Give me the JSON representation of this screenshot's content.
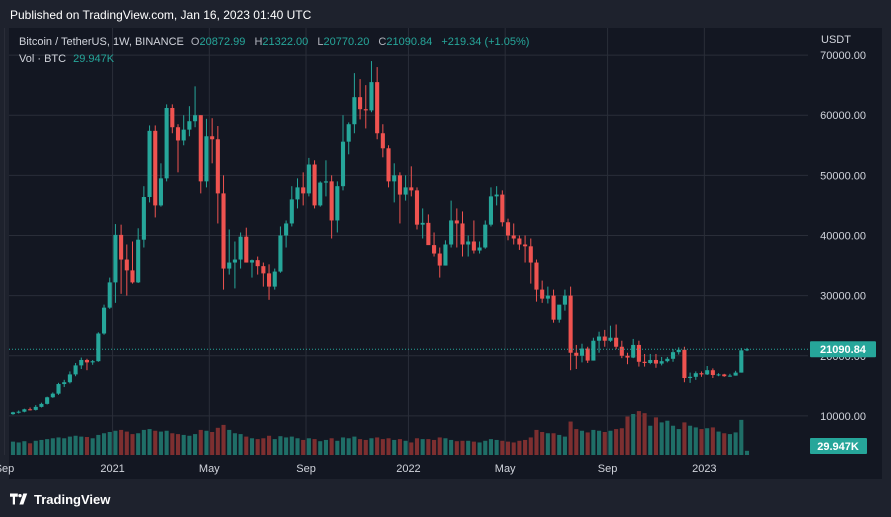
{
  "header": {
    "published": "Published on TradingView.com, Jan 16, 2023 01:40 UTC"
  },
  "legend": {
    "symbol": "Bitcoin / TetherUS, 1W, BINANCE",
    "open_label": "O",
    "open": "20872.99",
    "high_label": "H",
    "high": "21322.00",
    "low_label": "L",
    "low": "20770.20",
    "close_label": "C",
    "close": "21090.84",
    "change": "+219.34 (+1.05%)",
    "vol_label": "Vol · BTC",
    "vol_value": "29.947K"
  },
  "currency": "USDT",
  "footer": {
    "brand": "TradingView"
  },
  "colors": {
    "up": "#26a69a",
    "down": "#ef5350",
    "up_volume": "#1f6e67",
    "down_volume": "#7d2f30",
    "grid": "#2a2e39",
    "background": "#131722"
  },
  "chart_data": {
    "type": "candlestick",
    "timeframe": "1W",
    "y_axis": {
      "ticks": [
        10000,
        20000,
        30000,
        40000,
        50000,
        60000,
        70000
      ],
      "tick_labels": [
        "10000.00",
        "20000.00",
        "30000.00",
        "40000.00",
        "50000.00",
        "60000.00",
        "70000.00"
      ],
      "ylim": [
        3500,
        74500
      ]
    },
    "x_axis": {
      "tick_labels": [
        "Sep",
        "2021",
        "May",
        "Sep",
        "2022",
        "May",
        "Sep",
        "2023"
      ]
    },
    "last_price_label": "21090.84",
    "volume_label": "29.947K",
    "candles": [
      [
        10300,
        10700,
        10200,
        10600,
        32
      ],
      [
        10600,
        10900,
        10400,
        10700,
        30
      ],
      [
        10700,
        11200,
        10600,
        11100,
        33
      ],
      [
        11100,
        11400,
        10900,
        11000,
        28
      ],
      [
        11000,
        11800,
        10900,
        11500,
        34
      ],
      [
        11500,
        12200,
        11400,
        12000,
        36
      ],
      [
        12000,
        13200,
        11900,
        13100,
        38
      ],
      [
        13100,
        13900,
        13000,
        13700,
        40
      ],
      [
        13700,
        15500,
        13500,
        15300,
        42
      ],
      [
        15300,
        16000,
        14800,
        15600,
        40
      ],
      [
        15600,
        17400,
        15400,
        16900,
        44
      ],
      [
        16900,
        18800,
        16600,
        18400,
        46
      ],
      [
        18400,
        19700,
        17800,
        19300,
        44
      ],
      [
        19300,
        19500,
        17600,
        18900,
        43
      ],
      [
        18900,
        19300,
        18500,
        19100,
        40
      ],
      [
        19100,
        23900,
        19000,
        23700,
        48
      ],
      [
        23700,
        28500,
        23500,
        28000,
        52
      ],
      [
        28000,
        33000,
        27800,
        32200,
        55
      ],
      [
        32200,
        41900,
        28800,
        40100,
        58
      ],
      [
        40100,
        41800,
        30300,
        36000,
        60
      ],
      [
        36000,
        38500,
        30000,
        34200,
        56
      ],
      [
        34200,
        39000,
        32000,
        32200,
        50
      ],
      [
        32200,
        41200,
        32100,
        39300,
        52
      ],
      [
        39300,
        48200,
        38000,
        46400,
        60
      ],
      [
        46400,
        58300,
        45500,
        57400,
        62
      ],
      [
        57400,
        58300,
        43000,
        45000,
        58
      ],
      [
        45000,
        52000,
        44800,
        49500,
        56
      ],
      [
        49500,
        61800,
        49000,
        61200,
        58
      ],
      [
        61200,
        61800,
        57000,
        58000,
        52
      ],
      [
        58000,
        58500,
        50500,
        55800,
        50
      ],
      [
        55800,
        60000,
        55000,
        57600,
        48
      ],
      [
        57600,
        61500,
        56500,
        59000,
        46
      ],
      [
        59000,
        64800,
        58000,
        60000,
        50
      ],
      [
        60000,
        60000,
        47000,
        49000,
        60
      ],
      [
        49000,
        59400,
        48000,
        56500,
        58
      ],
      [
        56500,
        59500,
        52000,
        56000,
        55
      ],
      [
        56000,
        58200,
        42000,
        47000,
        65
      ],
      [
        47000,
        50000,
        31000,
        34500,
        72
      ],
      [
        34500,
        41000,
        33500,
        35500,
        60
      ],
      [
        35500,
        39000,
        31200,
        36000,
        52
      ],
      [
        36000,
        40500,
        34500,
        39800,
        50
      ],
      [
        39800,
        41300,
        35500,
        35500,
        44
      ],
      [
        35500,
        36000,
        33000,
        35900,
        40
      ],
      [
        35900,
        36500,
        33500,
        34900,
        38
      ],
      [
        34900,
        35500,
        31500,
        33700,
        40
      ],
      [
        33700,
        35200,
        29300,
        31500,
        46
      ],
      [
        31500,
        34500,
        31000,
        34000,
        38
      ],
      [
        34000,
        41500,
        33800,
        40000,
        45
      ],
      [
        40000,
        42500,
        38000,
        42000,
        42
      ],
      [
        42000,
        48200,
        41500,
        46000,
        44
      ],
      [
        46000,
        49500,
        44500,
        48000,
        40
      ],
      [
        48000,
        50500,
        45000,
        47000,
        36
      ],
      [
        47000,
        52900,
        46500,
        51800,
        40
      ],
      [
        51800,
        52500,
        44500,
        45000,
        38
      ],
      [
        45000,
        49000,
        44800,
        48800,
        33
      ],
      [
        48800,
        52500,
        46500,
        49000,
        36
      ],
      [
        49000,
        50000,
        39500,
        42500,
        40
      ],
      [
        42500,
        49000,
        40500,
        48200,
        34
      ],
      [
        48200,
        60000,
        47500,
        55600,
        42
      ],
      [
        55600,
        58800,
        53500,
        58500,
        40
      ],
      [
        58500,
        67000,
        57000,
        63000,
        44
      ],
      [
        63000,
        66000,
        59300,
        61000,
        38
      ],
      [
        61000,
        65000,
        57800,
        60800,
        36
      ],
      [
        60800,
        69000,
        60500,
        65500,
        40
      ],
      [
        65500,
        68000,
        56000,
        57000,
        42
      ],
      [
        57000,
        58500,
        53000,
        54500,
        38
      ],
      [
        54500,
        55000,
        48000,
        49000,
        40
      ],
      [
        49000,
        52000,
        45500,
        50000,
        36
      ],
      [
        50000,
        50500,
        42000,
        46800,
        38
      ],
      [
        46800,
        50000,
        45800,
        48000,
        34
      ],
      [
        48000,
        51500,
        46500,
        47500,
        30
      ],
      [
        47500,
        48000,
        41000,
        41800,
        40
      ],
      [
        41800,
        44500,
        39500,
        42100,
        38
      ],
      [
        42100,
        43500,
        38500,
        38400,
        38
      ],
      [
        38400,
        40500,
        36500,
        37000,
        36
      ],
      [
        37000,
        38000,
        33000,
        35000,
        42
      ],
      [
        35000,
        39200,
        35000,
        38500,
        40
      ],
      [
        38500,
        45800,
        38000,
        42500,
        36
      ],
      [
        42500,
        44500,
        38000,
        42000,
        33
      ],
      [
        42000,
        44000,
        36500,
        38500,
        34
      ],
      [
        38500,
        40000,
        36500,
        39000,
        34
      ],
      [
        39000,
        42500,
        37000,
        37500,
        32
      ],
      [
        37500,
        39000,
        37000,
        38000,
        30
      ],
      [
        38000,
        42500,
        37800,
        41800,
        34
      ],
      [
        41800,
        48000,
        41500,
        46500,
        38
      ],
      [
        46500,
        48200,
        45000,
        46800,
        36
      ],
      [
        46800,
        47500,
        41500,
        42200,
        34
      ],
      [
        42200,
        42800,
        39200,
        40000,
        32
      ],
      [
        40000,
        42000,
        38500,
        39500,
        30
      ],
      [
        39500,
        40000,
        37600,
        38500,
        34
      ],
      [
        38500,
        40000,
        35500,
        38200,
        36
      ],
      [
        38200,
        39500,
        32000,
        35500,
        42
      ],
      [
        35500,
        36000,
        29000,
        31000,
        60
      ],
      [
        31000,
        32500,
        28800,
        29500,
        55
      ],
      [
        29500,
        31500,
        28700,
        30000,
        52
      ],
      [
        30000,
        31000,
        25500,
        26000,
        52
      ],
      [
        26000,
        28000,
        25500,
        28500,
        48
      ],
      [
        28500,
        31000,
        27500,
        30000,
        44
      ],
      [
        30000,
        31500,
        17600,
        20500,
        80
      ],
      [
        20500,
        21800,
        17800,
        20000,
        62
      ],
      [
        20000,
        22000,
        18900,
        21200,
        58
      ],
      [
        21200,
        21500,
        18800,
        19200,
        54
      ],
      [
        19200,
        23000,
        19200,
        22500,
        60
      ],
      [
        22500,
        24000,
        20500,
        23200,
        58
      ],
      [
        23200,
        24300,
        21500,
        22500,
        55
      ],
      [
        22500,
        25000,
        22300,
        23000,
        58
      ],
      [
        23000,
        25200,
        21100,
        21500,
        62
      ],
      [
        21500,
        22500,
        19600,
        20000,
        64
      ],
      [
        20000,
        20500,
        18600,
        19700,
        92
      ],
      [
        19700,
        22800,
        19600,
        21800,
        98
      ],
      [
        21800,
        22500,
        18200,
        19000,
        105
      ],
      [
        19000,
        20300,
        18200,
        18800,
        100
      ],
      [
        18800,
        20300,
        18600,
        19300,
        70
      ],
      [
        19300,
        20300,
        18000,
        18700,
        90
      ],
      [
        18700,
        19800,
        18400,
        19100,
        78
      ],
      [
        19100,
        19800,
        18900,
        19500,
        82
      ],
      [
        19500,
        21100,
        19000,
        20600,
        70
      ],
      [
        20600,
        21400,
        20200,
        21000,
        62
      ],
      [
        21000,
        21500,
        15600,
        16300,
        78
      ],
      [
        16300,
        17200,
        15500,
        16500,
        70
      ],
      [
        16500,
        17400,
        16000,
        17100,
        66
      ],
      [
        17100,
        17400,
        16500,
        16900,
        62
      ],
      [
        16900,
        18300,
        16800,
        17600,
        64
      ],
      [
        17600,
        17900,
        16300,
        16800,
        66
      ],
      [
        16800,
        17100,
        16600,
        16900,
        56
      ],
      [
        16900,
        17000,
        16500,
        16600,
        52
      ],
      [
        16600,
        17000,
        16500,
        16700,
        50
      ],
      [
        16700,
        17500,
        16700,
        17200,
        54
      ],
      [
        17200,
        21300,
        17200,
        20900,
        84
      ],
      [
        20900,
        21322,
        20770,
        21090,
        10
      ]
    ]
  }
}
